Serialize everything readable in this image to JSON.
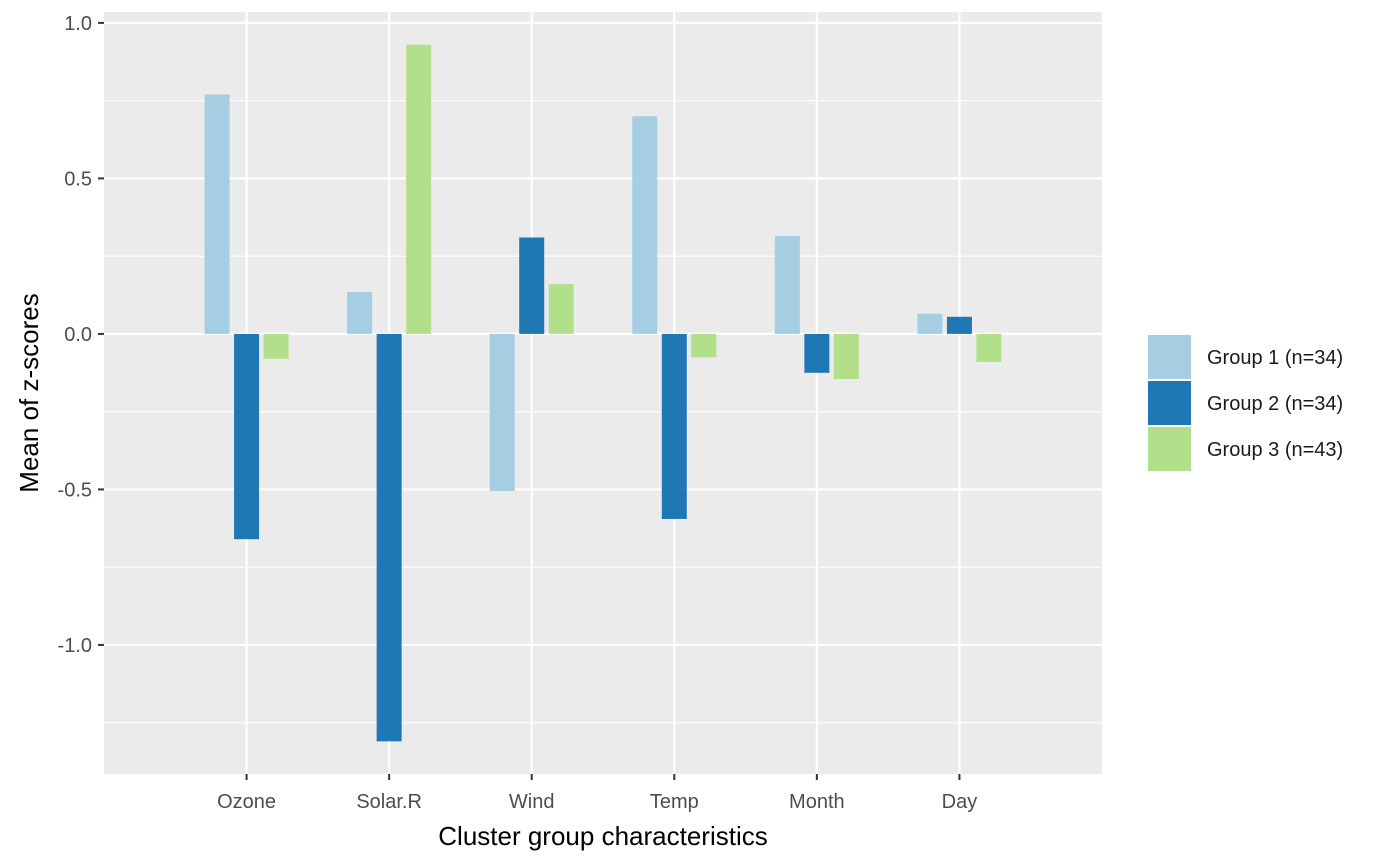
{
  "chart_data": {
    "type": "bar",
    "title": "",
    "xlabel": "Cluster group characteristics",
    "ylabel": "Mean of z-scores",
    "ylim": [
      -1.415,
      1.035
    ],
    "yticks": [
      -1.0,
      -0.5,
      0.0,
      0.5,
      1.0
    ],
    "ytick_labels": [
      "-1.0",
      "-0.5",
      "0.0",
      "0.5",
      "1.0"
    ],
    "categories": [
      "Ozone",
      "Solar.R",
      "Wind",
      "Temp",
      "Month",
      "Day"
    ],
    "series": [
      {
        "name": "Group 1 (n=34)",
        "color": "#a6cee3",
        "values": [
          0.77,
          0.135,
          -0.505,
          0.7,
          0.315,
          0.065
        ]
      },
      {
        "name": "Group 2 (n=34)",
        "color": "#1f78b4",
        "values": [
          -0.66,
          -1.31,
          0.31,
          -0.595,
          -0.125,
          0.055
        ]
      },
      {
        "name": "Group 3 (n=43)",
        "color": "#b2df8a",
        "values": [
          -0.08,
          0.93,
          0.16,
          -0.075,
          -0.145,
          -0.09
        ]
      }
    ],
    "grid": true,
    "panel_background": "#ebebeb",
    "legend_position": "right"
  }
}
